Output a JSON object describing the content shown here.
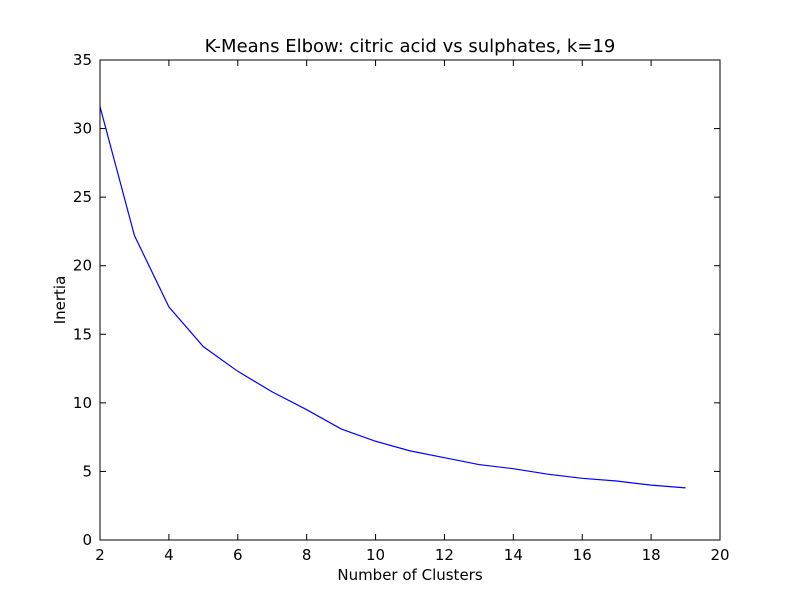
{
  "chart_data": {
    "type": "line",
    "title": "K-Means Elbow: citric acid vs sulphates, k=19",
    "xlabel": "Number of Clusters",
    "ylabel": "Inertia",
    "xlim": [
      2,
      20
    ],
    "ylim": [
      0,
      35
    ],
    "xticks": [
      2,
      4,
      6,
      8,
      10,
      12,
      14,
      16,
      18,
      20
    ],
    "yticks": [
      0,
      5,
      10,
      15,
      20,
      25,
      30,
      35
    ],
    "grid": false,
    "legend": "none",
    "series": [
      {
        "color": "#0000ff",
        "x": [
          2,
          3,
          4,
          5,
          6,
          7,
          8,
          9,
          10,
          11,
          12,
          13,
          14,
          15,
          16,
          17,
          18,
          19
        ],
        "y": [
          31.6,
          22.2,
          17.0,
          14.1,
          12.3,
          10.8,
          9.5,
          8.1,
          7.2,
          6.5,
          6.0,
          5.5,
          5.2,
          4.8,
          4.5,
          4.3,
          4.0,
          3.8
        ]
      }
    ]
  }
}
